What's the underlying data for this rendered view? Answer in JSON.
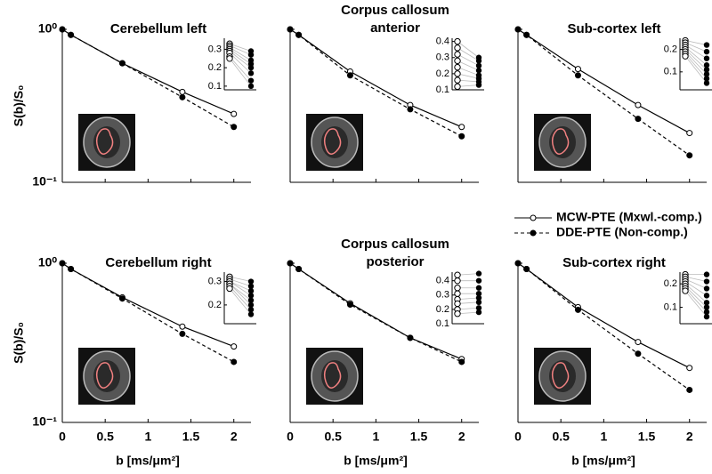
{
  "legend": [
    {
      "name": "MCW-PTE (Mxwl.-comp.)",
      "color": "#000000",
      "dashed": false,
      "filled": false
    },
    {
      "name": "DDE-PTE (Non-comp.)",
      "color": "#000000",
      "dashed": true,
      "filled": true
    }
  ],
  "chart_data": [
    {
      "type": "line",
      "title": "Cerebellum left",
      "ylabel": "S(b)/S₀",
      "log_y": true,
      "x": [
        0,
        0.1,
        0.7,
        1.4,
        2
      ],
      "xlim": [
        0,
        2.2
      ],
      "xticks": [
        0,
        0.5,
        1,
        1.5,
        2
      ],
      "show_xtick_labels": false,
      "ylim": [
        0.1,
        1
      ],
      "yticks": [
        {
          "value": 0.1,
          "label": "10⁻¹"
        },
        {
          "value": 1,
          "label": "10⁰"
        }
      ],
      "show_ytick_labels": true,
      "series": [
        {
          "values": [
            1,
            0.92,
            0.6,
            0.39,
            0.28
          ]
        },
        {
          "values": [
            1,
            0.92,
            0.6,
            0.36,
            0.23
          ]
        }
      ],
      "inset": {
        "ylim": [
          0.08,
          0.36
        ],
        "yticks": [
          0.1,
          0.2,
          0.3
        ],
        "left": [
          0.33,
          0.32,
          0.31,
          0.3,
          0.29,
          0.28,
          0.26,
          0.25
        ],
        "right": [
          0.29,
          0.27,
          0.24,
          0.22,
          0.2,
          0.17,
          0.13,
          0.1
        ]
      }
    },
    {
      "type": "line",
      "title": [
        "Corpus callosum",
        "anterior"
      ],
      "log_y": true,
      "x": [
        0,
        0.1,
        0.7,
        1.4,
        2
      ],
      "xlim": [
        0,
        2.2
      ],
      "xticks": [
        0,
        0.5,
        1,
        1.5,
        2
      ],
      "show_xtick_labels": false,
      "ylim": [
        0.1,
        1
      ],
      "yticks": [
        {
          "value": 0.1,
          "label": "10⁻¹"
        },
        {
          "value": 1,
          "label": "10⁰"
        }
      ],
      "show_ytick_labels": false,
      "series": [
        {
          "values": [
            1,
            0.92,
            0.53,
            0.32,
            0.23
          ]
        },
        {
          "values": [
            1,
            0.92,
            0.5,
            0.3,
            0.2
          ]
        }
      ],
      "inset": {
        "ylim": [
          0.1,
          0.42
        ],
        "yticks": [
          0.1,
          0.2,
          0.3,
          0.4
        ],
        "left": [
          0.4,
          0.36,
          0.32,
          0.28,
          0.24,
          0.2,
          0.16,
          0.12
        ],
        "right": [
          0.3,
          0.28,
          0.25,
          0.22,
          0.19,
          0.17,
          0.15,
          0.13
        ]
      }
    },
    {
      "type": "line",
      "title": "Sub-cortex left",
      "log_y": true,
      "x": [
        0,
        0.1,
        0.7,
        1.4,
        2
      ],
      "xlim": [
        0,
        2.2
      ],
      "xticks": [
        0,
        0.5,
        1,
        1.5,
        2
      ],
      "show_xtick_labels": false,
      "ylim": [
        0.1,
        1
      ],
      "yticks": [
        {
          "value": 0.1,
          "label": "10⁻¹"
        },
        {
          "value": 1,
          "label": "10⁰"
        }
      ],
      "show_ytick_labels": false,
      "series": [
        {
          "values": [
            1,
            0.92,
            0.55,
            0.32,
            0.21
          ]
        },
        {
          "values": [
            1,
            0.92,
            0.5,
            0.26,
            0.15
          ]
        }
      ],
      "inset": {
        "ylim": [
          0.02,
          0.25
        ],
        "yticks": [
          0.1,
          0.2
        ],
        "left": [
          0.24,
          0.23,
          0.22,
          0.21,
          0.2,
          0.19,
          0.18,
          0.17
        ],
        "right": [
          0.22,
          0.19,
          0.16,
          0.13,
          0.11,
          0.09,
          0.07,
          0.05
        ]
      }
    },
    {
      "type": "line",
      "title": "Cerebellum right",
      "ylabel": "S(b)/S₀",
      "xlabel": "b [ms/μm²]",
      "log_y": true,
      "x": [
        0,
        0.1,
        0.7,
        1.4,
        2
      ],
      "xlim": [
        0,
        2.2
      ],
      "xticks": [
        0,
        0.5,
        1,
        1.5,
        2
      ],
      "show_xtick_labels": true,
      "ylim": [
        0.1,
        1
      ],
      "yticks": [
        {
          "value": 0.1,
          "label": "10⁻¹"
        },
        {
          "value": 1,
          "label": "10⁰"
        }
      ],
      "show_ytick_labels": true,
      "series": [
        {
          "values": [
            1,
            0.92,
            0.61,
            0.4,
            0.3
          ]
        },
        {
          "values": [
            1,
            0.92,
            0.6,
            0.36,
            0.24
          ]
        }
      ],
      "inset": {
        "ylim": [
          0.12,
          0.34
        ],
        "yticks": [
          0.2,
          0.3
        ],
        "left": [
          0.32,
          0.31,
          0.3,
          0.3,
          0.29,
          0.29,
          0.28,
          0.27
        ],
        "right": [
          0.3,
          0.28,
          0.26,
          0.24,
          0.22,
          0.2,
          0.18,
          0.16
        ]
      }
    },
    {
      "type": "line",
      "title": [
        "Corpus callosum",
        "posterior"
      ],
      "xlabel": "b [ms/μm²]",
      "log_y": true,
      "x": [
        0,
        0.1,
        0.7,
        1.4,
        2
      ],
      "xlim": [
        0,
        2.2
      ],
      "xticks": [
        0,
        0.5,
        1,
        1.5,
        2
      ],
      "show_xtick_labels": true,
      "ylim": [
        0.1,
        1
      ],
      "yticks": [
        {
          "value": 0.1,
          "label": "10⁻¹"
        },
        {
          "value": 1,
          "label": "10⁰"
        }
      ],
      "show_ytick_labels": false,
      "series": [
        {
          "values": [
            1,
            0.92,
            0.56,
            0.34,
            0.25
          ]
        },
        {
          "values": [
            1,
            0.92,
            0.55,
            0.34,
            0.24
          ]
        }
      ],
      "inset": {
        "ylim": [
          0.1,
          0.46
        ],
        "yticks": [
          0.1,
          0.2,
          0.3,
          0.4
        ],
        "left": [
          0.44,
          0.4,
          0.35,
          0.31,
          0.27,
          0.24,
          0.2,
          0.17
        ],
        "right": [
          0.45,
          0.4,
          0.35,
          0.31,
          0.28,
          0.25,
          0.21,
          0.18
        ]
      }
    },
    {
      "type": "line",
      "title": "Sub-cortex right",
      "xlabel": "b [ms/μm²]",
      "log_y": true,
      "x": [
        0,
        0.1,
        0.7,
        1.4,
        2
      ],
      "xlim": [
        0,
        2.2
      ],
      "xticks": [
        0,
        0.5,
        1,
        1.5,
        2
      ],
      "show_xtick_labels": true,
      "ylim": [
        0.1,
        1
      ],
      "yticks": [
        {
          "value": 0.1,
          "label": "10⁻¹"
        },
        {
          "value": 1,
          "label": "10⁰"
        }
      ],
      "show_ytick_labels": false,
      "series": [
        {
          "values": [
            1,
            0.92,
            0.53,
            0.32,
            0.22
          ]
        },
        {
          "values": [
            1,
            0.92,
            0.51,
            0.27,
            0.16
          ]
        }
      ],
      "inset": {
        "ylim": [
          0.03,
          0.25
        ],
        "yticks": [
          0.1,
          0.2
        ],
        "left": [
          0.24,
          0.23,
          0.22,
          0.21,
          0.2,
          0.19,
          0.18,
          0.17
        ],
        "right": [
          0.24,
          0.21,
          0.18,
          0.15,
          0.12,
          0.1,
          0.08,
          0.06
        ]
      }
    }
  ]
}
